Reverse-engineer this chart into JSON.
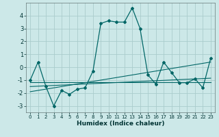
{
  "xlabel": "Humidex (Indice chaleur)",
  "background_color": "#cce8e8",
  "grid_color": "#aacccc",
  "line_color": "#006666",
  "xlim": [
    -0.5,
    23.5
  ],
  "ylim": [
    -3.5,
    5.0
  ],
  "x_ticks": [
    0,
    1,
    2,
    3,
    4,
    5,
    6,
    7,
    8,
    9,
    10,
    11,
    12,
    13,
    14,
    15,
    16,
    17,
    18,
    19,
    20,
    21,
    22,
    23
  ],
  "y_ticks": [
    -3,
    -2,
    -1,
    0,
    1,
    2,
    3,
    4
  ],
  "series1_x": [
    0,
    1,
    2,
    3,
    4,
    5,
    6,
    7,
    8,
    9,
    10,
    11,
    12,
    13,
    14,
    15,
    16,
    17,
    18,
    19,
    20,
    21,
    22,
    23
  ],
  "series1_y": [
    -1.0,
    0.4,
    -1.5,
    -3.0,
    -1.8,
    -2.1,
    -1.7,
    -1.6,
    -0.3,
    3.4,
    3.6,
    3.5,
    3.5,
    4.6,
    3.0,
    -0.6,
    -1.3,
    0.4,
    -0.4,
    -1.2,
    -1.2,
    -0.9,
    -1.6,
    0.7
  ],
  "series2_x": [
    0,
    23
  ],
  "series2_y": [
    -1.5,
    -0.85
  ],
  "series3_x": [
    0,
    23
  ],
  "series3_y": [
    -1.9,
    0.4
  ],
  "series4_x": [
    0,
    23
  ],
  "series4_y": [
    -1.15,
    -1.15
  ]
}
